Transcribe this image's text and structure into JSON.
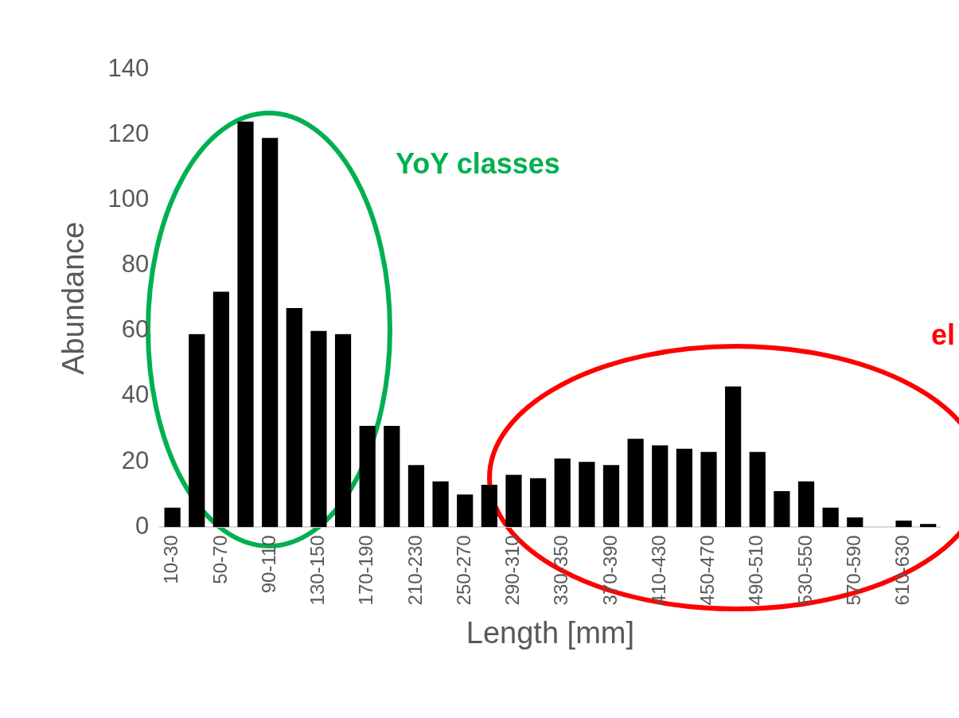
{
  "chart_data": {
    "type": "bar",
    "xlabel": "Length [mm]",
    "ylabel": "Abundance",
    "categories": [
      "10-30",
      null,
      "50-70",
      null,
      "90-110",
      null,
      "130-150",
      null,
      "170-190",
      null,
      "210-230",
      null,
      "250-270",
      null,
      "290-310",
      null,
      "330-350",
      null,
      "370-390",
      null,
      "410-430",
      null,
      "450-470",
      null,
      "490-510",
      null,
      "530-550",
      null,
      "570-590",
      null,
      "610-630",
      null
    ],
    "values": [
      6,
      59,
      72,
      124,
      119,
      67,
      60,
      59,
      31,
      31,
      19,
      14,
      10,
      13,
      16,
      15,
      21,
      20,
      19,
      27,
      25,
      24,
      23,
      43,
      23,
      11,
      14,
      6,
      3,
      0,
      2,
      1
    ],
    "color": "#000000",
    "ylim": [
      0,
      140
    ],
    "yticks": [
      0,
      20,
      40,
      60,
      80,
      100,
      120,
      140
    ],
    "grid": false,
    "legend": false,
    "annotations": [
      "YoY classes",
      "el"
    ]
  }
}
